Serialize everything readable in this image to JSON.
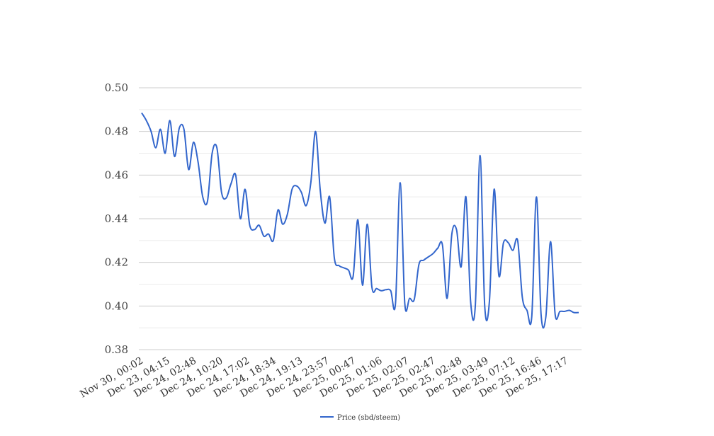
{
  "chart_data": {
    "type": "line",
    "title": "",
    "xlabel": "",
    "ylabel": "",
    "ylim": [
      0.38,
      0.5
    ],
    "y_ticks": [
      0.38,
      0.4,
      0.42,
      0.44,
      0.46,
      0.48,
      0.5
    ],
    "y_tick_labels": [
      "0.38",
      "0.40",
      "0.42",
      "0.44",
      "0.46",
      "0.48",
      "0.50"
    ],
    "minor_grid": true,
    "x_tick_labels": [
      "Nov 30, 00:02",
      "Dec 23, 04:15",
      "Dec 24, 02:48",
      "Dec 24, 10:20",
      "Dec 24, 17:02",
      "Dec 24, 18:34",
      "Dec 24, 19:13",
      "Dec 24, 23:57",
      "Dec 25, 00:47",
      "Dec 25, 01:06",
      "Dec 25, 02:07",
      "Dec 25, 02:47",
      "Dec 25, 02:48",
      "Dec 25, 03:49",
      "Dec 25, 07:12",
      "Dec 25, 16:46",
      "Dec 25, 17:17"
    ],
    "legend_position": "bottom",
    "series": [
      {
        "name": "Price (sbd/steem)",
        "color": "#3366cc",
        "values": [
          0.4885,
          0.485,
          0.48,
          0.4725,
          0.481,
          0.47,
          0.485,
          0.4685,
          0.4815,
          0.481,
          0.4625,
          0.475,
          0.466,
          0.45,
          0.448,
          0.47,
          0.4725,
          0.452,
          0.4495,
          0.456,
          0.46,
          0.44,
          0.4535,
          0.437,
          0.435,
          0.437,
          0.432,
          0.433,
          0.43,
          0.444,
          0.4375,
          0.442,
          0.4535,
          0.455,
          0.452,
          0.446,
          0.4565,
          0.48,
          0.453,
          0.438,
          0.45,
          0.422,
          0.4185,
          0.4175,
          0.4165,
          0.4135,
          0.4395,
          0.4095,
          0.4375,
          0.4085,
          0.408,
          0.407,
          0.4075,
          0.407,
          0.401,
          0.4565,
          0.401,
          0.4035,
          0.403,
          0.419,
          0.421,
          0.4225,
          0.424,
          0.4265,
          0.428,
          0.4035,
          0.433,
          0.435,
          0.418,
          0.45,
          0.402,
          0.4,
          0.469,
          0.4,
          0.402,
          0.4535,
          0.414,
          0.429,
          0.429,
          0.4255,
          0.43,
          0.404,
          0.398,
          0.395,
          0.45,
          0.396,
          0.395,
          0.4295,
          0.396,
          0.3975,
          0.3975,
          0.398,
          0.397,
          0.397
        ]
      }
    ]
  }
}
